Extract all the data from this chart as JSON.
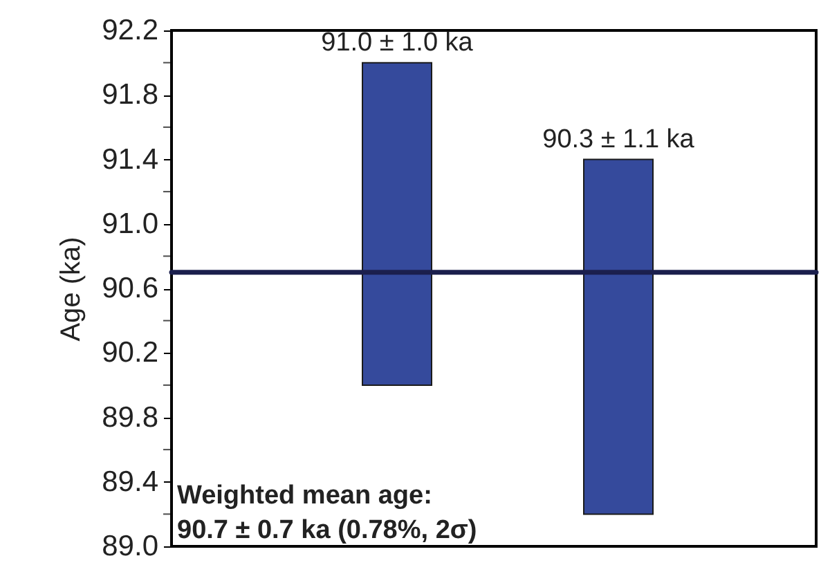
{
  "chart_data": {
    "type": "bar",
    "ylabel": "Age (ka)",
    "categories": [
      null,
      null
    ],
    "base": [
      90.0,
      89.2
    ],
    "values": [
      2.0,
      2.2
    ],
    "color": "#354a9c",
    "ylim": [
      89.0,
      92.2
    ],
    "yticks": [
      {
        "value": 89.0,
        "label": "89.0"
      },
      {
        "value": 89.2,
        "label": null
      },
      89.4,
      {
        "value": 89.6,
        "label": null
      },
      89.8,
      {
        "value": 90.0,
        "label": null
      },
      90.2,
      {
        "value": 90.4,
        "label": null
      },
      90.6,
      {
        "value": 90.8,
        "label": null
      },
      {
        "value": 91.0,
        "label": "91.0"
      },
      {
        "value": 91.2,
        "label": null
      },
      91.4,
      {
        "value": 91.6,
        "label": null
      },
      91.8,
      {
        "value": 92.0,
        "label": null
      },
      92.2
    ],
    "ref_lines": [
      {
        "axis": "y",
        "value": 90.7,
        "color": "#1b1f4d"
      }
    ],
    "annotations": [
      {
        "text": "91.0 ± 1.0 ka",
        "y": 92.0
      },
      {
        "text": "90.3 ± 1.1 ka",
        "y": 91.4
      },
      "Weighted mean age:",
      "90.7 ± 0.7 ka (0.78%, 2σ)"
    ],
    "grid": false
  }
}
